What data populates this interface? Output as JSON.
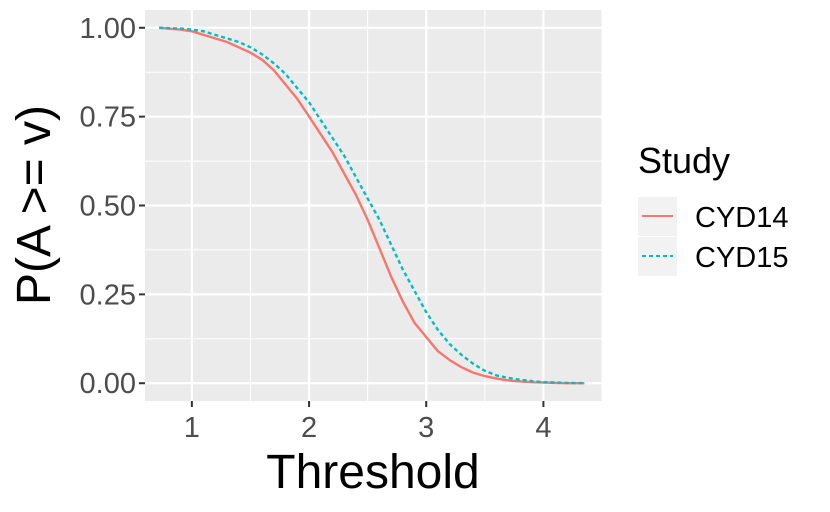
{
  "chart_data": {
    "type": "line",
    "xlabel": "Threshold",
    "ylabel": "P(A >= v)",
    "xlim": [
      0.6,
      4.5
    ],
    "ylim": [
      -0.05,
      1.05
    ],
    "x_ticks": [
      1,
      2,
      3,
      4
    ],
    "x_tick_labels": [
      "1",
      "2",
      "3",
      "4"
    ],
    "y_ticks": [
      0.0,
      0.25,
      0.5,
      0.75,
      1.0
    ],
    "y_tick_labels": [
      "0.00",
      "0.25",
      "0.50",
      "0.75",
      "1.00"
    ],
    "grid": true,
    "legend": {
      "title": "Study",
      "position": "right"
    },
    "series": [
      {
        "name": "CYD14",
        "color": "#F8766D",
        "dash": "solid",
        "x": [
          0.72,
          0.9,
          1.0,
          1.1,
          1.2,
          1.3,
          1.4,
          1.5,
          1.6,
          1.7,
          1.8,
          1.9,
          2.0,
          2.1,
          2.2,
          2.3,
          2.4,
          2.5,
          2.6,
          2.7,
          2.8,
          2.9,
          3.0,
          3.1,
          3.2,
          3.3,
          3.4,
          3.5,
          3.6,
          3.7,
          3.8,
          3.9,
          4.0,
          4.1,
          4.2,
          4.35
        ],
        "y": [
          1.0,
          0.995,
          0.99,
          0.98,
          0.97,
          0.96,
          0.945,
          0.93,
          0.91,
          0.88,
          0.84,
          0.8,
          0.75,
          0.7,
          0.65,
          0.59,
          0.53,
          0.46,
          0.38,
          0.3,
          0.23,
          0.17,
          0.13,
          0.09,
          0.065,
          0.045,
          0.03,
          0.02,
          0.013,
          0.008,
          0.005,
          0.003,
          0.002,
          0.001,
          0.0,
          0.0
        ]
      },
      {
        "name": "CYD15",
        "color": "#00BFC4",
        "dash": "dotted",
        "x": [
          0.72,
          0.9,
          1.0,
          1.1,
          1.2,
          1.3,
          1.4,
          1.5,
          1.6,
          1.7,
          1.8,
          1.9,
          2.0,
          2.1,
          2.2,
          2.3,
          2.4,
          2.5,
          2.6,
          2.7,
          2.8,
          2.9,
          3.0,
          3.1,
          3.2,
          3.3,
          3.4,
          3.5,
          3.6,
          3.7,
          3.8,
          3.9,
          4.0,
          4.1,
          4.2,
          4.35
        ],
        "y": [
          1.0,
          0.998,
          0.995,
          0.99,
          0.98,
          0.97,
          0.96,
          0.945,
          0.925,
          0.9,
          0.87,
          0.83,
          0.79,
          0.74,
          0.69,
          0.64,
          0.58,
          0.52,
          0.46,
          0.39,
          0.32,
          0.26,
          0.2,
          0.15,
          0.11,
          0.08,
          0.055,
          0.035,
          0.022,
          0.015,
          0.01,
          0.006,
          0.003,
          0.002,
          0.001,
          0.0
        ]
      }
    ]
  }
}
